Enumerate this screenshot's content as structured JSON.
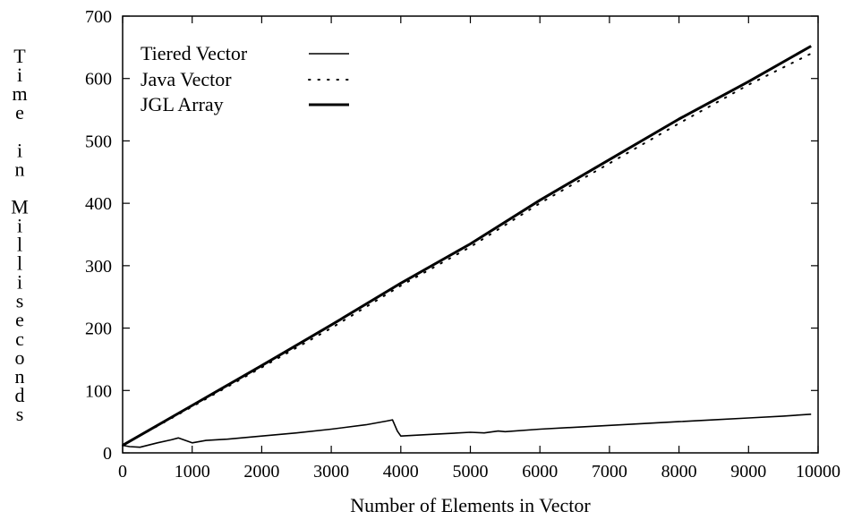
{
  "chart_data": {
    "type": "line",
    "title": "",
    "xlabel": "Number of Elements in Vector",
    "ylabel": "Time in Milliseconds",
    "xlim": [
      0,
      10000
    ],
    "ylim": [
      0,
      700
    ],
    "x_ticks": [
      "0",
      "1000",
      "2000",
      "3000",
      "4000",
      "5000",
      "6000",
      "7000",
      "8000",
      "9000",
      "10000"
    ],
    "y_ticks": [
      "0",
      "100",
      "200",
      "300",
      "400",
      "500",
      "600",
      "700"
    ],
    "grid": false,
    "legend_position": "top-left",
    "series": [
      {
        "name": "Tiered Vector",
        "style": "solid-thin",
        "color": "#000000",
        "x": [
          0,
          100,
          250,
          500,
          700,
          800,
          1000,
          1200,
          1500,
          2000,
          2500,
          3000,
          3500,
          3800,
          3880,
          3950,
          4000,
          4500,
          5000,
          5200,
          5400,
          5500,
          6000,
          6500,
          7000,
          7500,
          8000,
          8500,
          9000,
          9500,
          9900
        ],
        "y": [
          12,
          10,
          9,
          16,
          21,
          24,
          16,
          20,
          22,
          27,
          32,
          38,
          45,
          51,
          53,
          35,
          27,
          30,
          33,
          32,
          35,
          34,
          38,
          41,
          44,
          47,
          50,
          53,
          56,
          59,
          62
        ]
      },
      {
        "name": "Java Vector",
        "style": "dotted",
        "color": "#000000",
        "x": [
          0,
          1000,
          2000,
          3000,
          4000,
          5000,
          6000,
          7000,
          8000,
          9000,
          9900
        ],
        "y": [
          12,
          74,
          137,
          200,
          268,
          330,
          400,
          464,
          528,
          590,
          640
        ]
      },
      {
        "name": "JGL Array",
        "style": "solid-thick",
        "color": "#000000",
        "x": [
          0,
          1000,
          2000,
          3000,
          4000,
          5000,
          6000,
          7000,
          8000,
          9000,
          9900
        ],
        "y": [
          12,
          76,
          140,
          205,
          272,
          335,
          405,
          470,
          535,
          595,
          652
        ]
      }
    ]
  }
}
